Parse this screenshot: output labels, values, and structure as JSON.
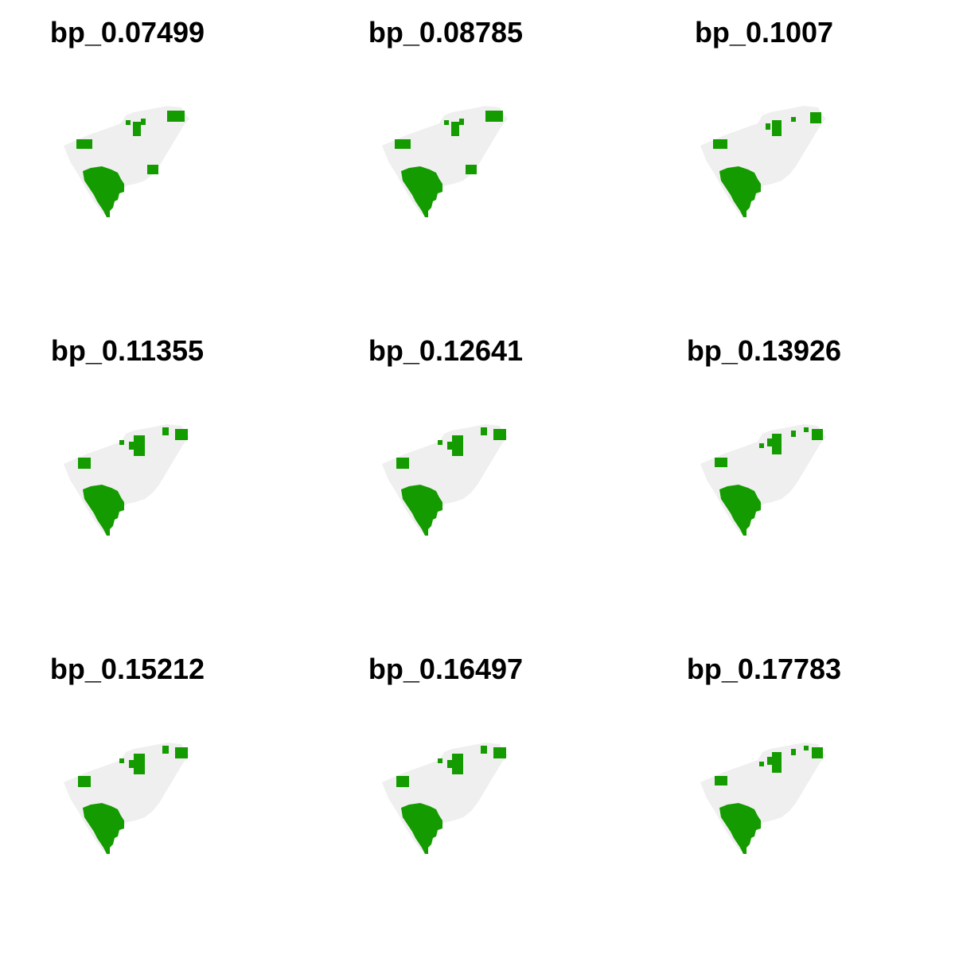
{
  "colors": {
    "background": "#ffffff",
    "land": "#efefef",
    "habitat": "#149b00"
  },
  "panels": [
    {
      "title": "bp_0.07499",
      "variant": 0
    },
    {
      "title": "bp_0.08785",
      "variant": 0
    },
    {
      "title": "bp_0.1007",
      "variant": 1
    },
    {
      "title": "bp_0.11355",
      "variant": 2
    },
    {
      "title": "bp_0.12641",
      "variant": 2
    },
    {
      "title": "bp_0.13926",
      "variant": 3
    },
    {
      "title": "bp_0.15212",
      "variant": 2
    },
    {
      "title": "bp_0.16497",
      "variant": 2
    },
    {
      "title": "bp_0.17783",
      "variant": 3
    }
  ]
}
